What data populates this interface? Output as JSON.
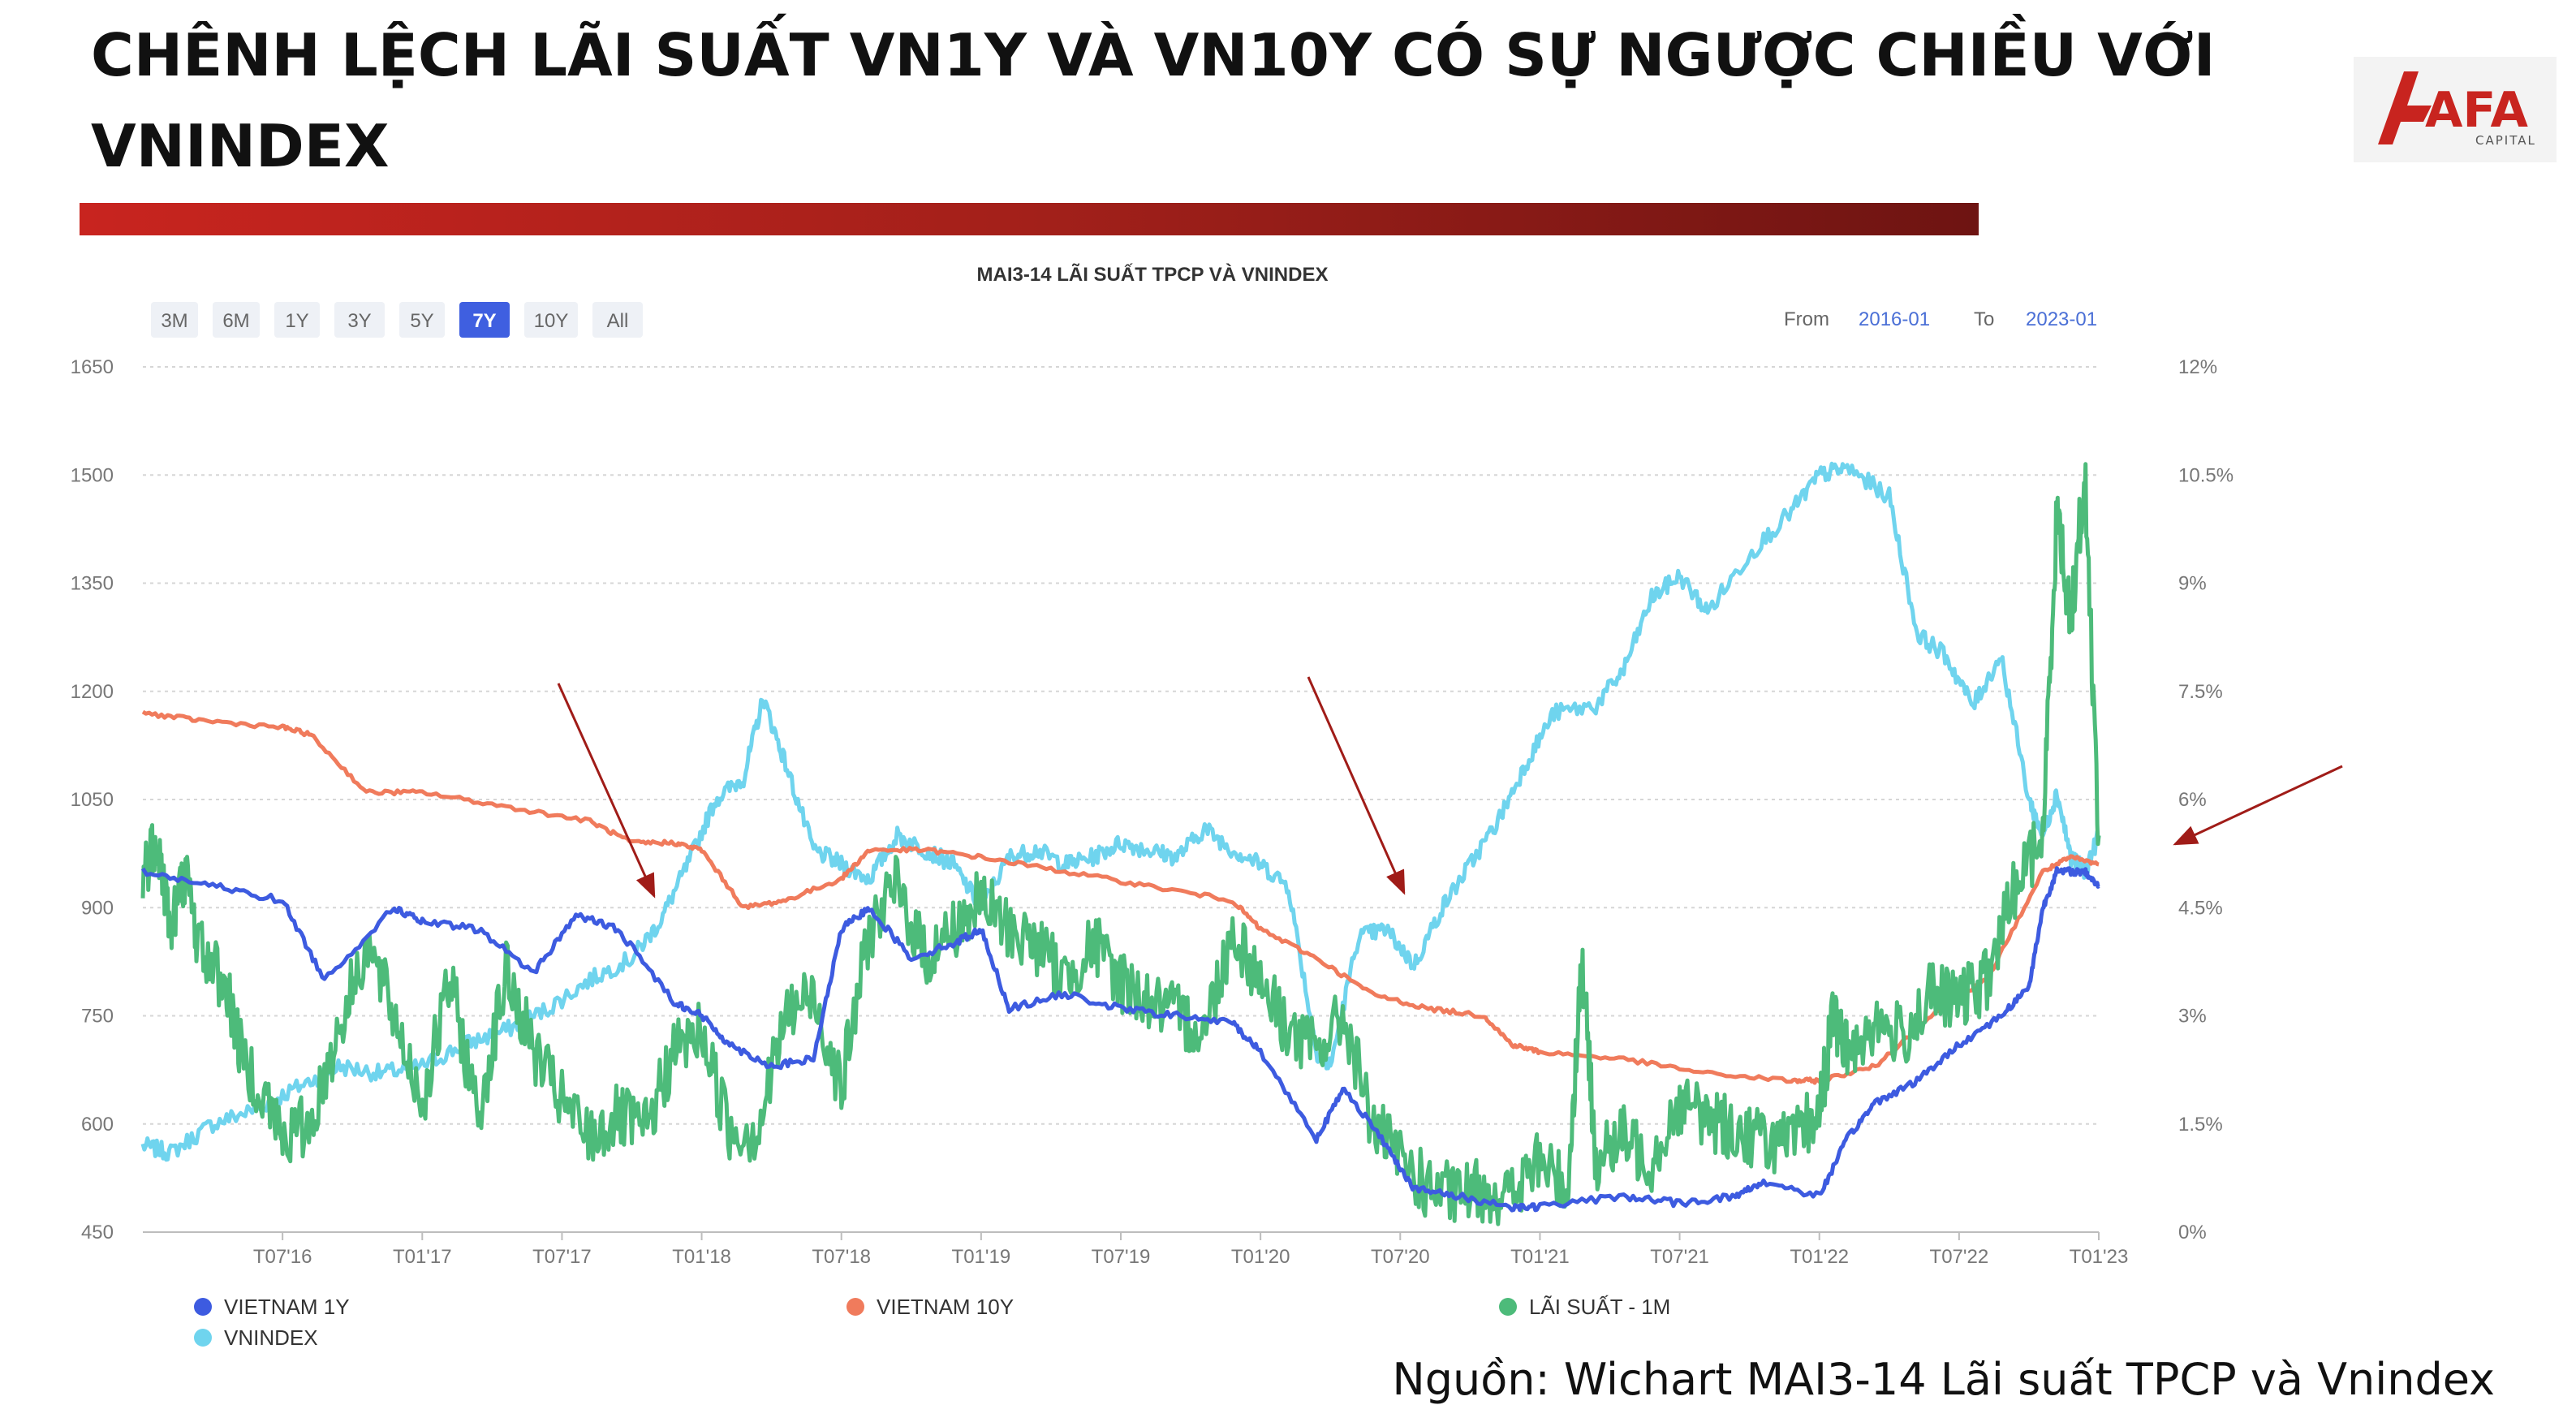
{
  "slide": {
    "title": "CHÊNH LỆCH LÃI SUẤT VN1Y VÀ VN10Y CÓ SỰ NGƯỢC CHIỀU VỚI VNINDEX",
    "source": "Nguồn: Wichart MAI3-14 Lãi suất TPCP và Vnindex",
    "logo_text": "AFA",
    "logo_subtext": "CAPITAL",
    "accent_color": "#c8241f"
  },
  "range_selector": {
    "buttons": [
      "3M",
      "6M",
      "1Y",
      "3Y",
      "5Y",
      "7Y",
      "10Y",
      "All"
    ],
    "active": "7Y",
    "from_label": "From",
    "from_value": "2016-01",
    "to_label": "To",
    "to_value": "2023-01"
  },
  "chart_data": {
    "type": "line",
    "title": "MAI3-14 LÃI SUẤT TPCP VÀ VNINDEX",
    "x_ticks": [
      "T07'16",
      "T01'17",
      "T07'17",
      "T01'18",
      "T07'18",
      "T01'19",
      "T07'19",
      "T01'20",
      "T07'20",
      "T01'21",
      "T07'21",
      "T01'22",
      "T07'22",
      "T01'23"
    ],
    "left_axis": {
      "range": [
        450,
        1650
      ],
      "ticks": [
        450,
        600,
        750,
        900,
        1050,
        1200,
        1350,
        1500,
        1650
      ]
    },
    "right_axis": {
      "range": [
        0,
        12
      ],
      "unit": "%",
      "ticks": [
        "0%",
        "1.5%",
        "3%",
        "4.5%",
        "6%",
        "7.5%",
        "9%",
        "10.5%",
        "12%"
      ]
    },
    "grid": true,
    "legend_position": "bottom",
    "series": [
      {
        "name": "VIETNAM 1Y",
        "axis": "right",
        "color": "#3d5be0",
        "x": [
          2016.0,
          2016.25,
          2016.5,
          2016.65,
          2016.9,
          2017.0,
          2017.2,
          2017.4,
          2017.55,
          2017.7,
          2017.9,
          2018.0,
          2018.1,
          2018.25,
          2018.4,
          2018.5,
          2018.6,
          2018.75,
          2018.9,
          2019.0,
          2019.1,
          2019.3,
          2019.5,
          2019.7,
          2019.9,
          2020.0,
          2020.2,
          2020.3,
          2020.45,
          2020.55,
          2020.7,
          2020.9,
          2021.0,
          2021.3,
          2021.5,
          2021.7,
          2021.8,
          2022.0,
          2022.1,
          2022.2,
          2022.35,
          2022.5,
          2022.65,
          2022.75,
          2022.8,
          2022.85,
          2022.95,
          2023.0
        ],
        "values": [
          5.0,
          4.8,
          4.6,
          3.5,
          4.5,
          4.3,
          4.2,
          3.6,
          4.4,
          4.2,
          3.2,
          3.0,
          2.6,
          2.3,
          2.4,
          4.2,
          4.5,
          3.8,
          4.0,
          4.2,
          3.1,
          3.3,
          3.1,
          3.0,
          2.9,
          2.5,
          1.3,
          2.0,
          1.2,
          0.6,
          0.5,
          0.35,
          0.35,
          0.5,
          0.4,
          0.5,
          0.7,
          0.5,
          1.3,
          1.8,
          2.1,
          2.6,
          3.0,
          3.4,
          4.5,
          5.0,
          5.0,
          4.8
        ]
      },
      {
        "name": "VIETNAM 10Y",
        "axis": "right",
        "color": "#f07b5c",
        "x": [
          2016.0,
          2016.2,
          2016.5,
          2016.6,
          2016.8,
          2017.0,
          2017.3,
          2017.6,
          2017.75,
          2017.9,
          2018.0,
          2018.15,
          2018.3,
          2018.5,
          2018.6,
          2018.8,
          2019.0,
          2019.3,
          2019.6,
          2019.9,
          2020.0,
          2020.2,
          2020.4,
          2020.6,
          2020.8,
          2020.9,
          2021.0,
          2021.3,
          2021.6,
          2021.9,
          2022.0,
          2022.2,
          2022.4,
          2022.6,
          2022.8,
          2022.9,
          2023.0
        ],
        "values": [
          7.2,
          7.1,
          7.0,
          6.9,
          6.1,
          6.1,
          5.9,
          5.7,
          5.4,
          5.4,
          5.3,
          4.5,
          4.6,
          4.9,
          5.3,
          5.3,
          5.2,
          5.0,
          4.8,
          4.6,
          4.2,
          3.8,
          3.3,
          3.1,
          3.0,
          2.6,
          2.5,
          2.4,
          2.2,
          2.1,
          2.1,
          2.3,
          3.0,
          3.5,
          5.0,
          5.2,
          5.1
        ]
      },
      {
        "name": "LÃI SUẤT - 1M",
        "axis": "right",
        "color": "#4dbb7a",
        "x": [
          2016.0,
          2016.05,
          2016.1,
          2016.15,
          2016.2,
          2016.3,
          2016.35,
          2016.45,
          2016.5,
          2016.6,
          2016.7,
          2016.8,
          2016.9,
          2017.0,
          2017.1,
          2017.2,
          2017.3,
          2017.4,
          2017.5,
          2017.6,
          2017.7,
          2017.8,
          2017.9,
          2018.0,
          2018.1,
          2018.2,
          2018.3,
          2018.4,
          2018.5,
          2018.6,
          2018.7,
          2018.8,
          2018.9,
          2019.0,
          2019.1,
          2019.2,
          2019.3,
          2019.4,
          2019.5,
          2019.6,
          2019.7,
          2019.8,
          2019.9,
          2020.0,
          2020.1,
          2020.2,
          2020.3,
          2020.4,
          2020.5,
          2020.6,
          2020.7,
          2020.8,
          2020.9,
          2021.0,
          2021.1,
          2021.15,
          2021.2,
          2021.3,
          2021.4,
          2021.5,
          2021.6,
          2021.7,
          2021.8,
          2021.9,
          2022.0,
          2022.05,
          2022.1,
          2022.2,
          2022.3,
          2022.4,
          2022.5,
          2022.6,
          2022.7,
          2022.8,
          2022.85,
          2022.9,
          2022.95,
          2023.0
        ],
        "values": [
          5.0,
          5.5,
          4.2,
          5.0,
          4.0,
          3.4,
          2.5,
          1.8,
          1.3,
          1.5,
          2.8,
          4.0,
          3.0,
          1.8,
          3.5,
          1.6,
          3.6,
          2.5,
          1.8,
          1.3,
          1.6,
          1.4,
          2.5,
          2.8,
          1.4,
          1.4,
          3.0,
          3.3,
          2.0,
          4.2,
          4.8,
          3.8,
          4.2,
          4.6,
          4.2,
          4.0,
          3.5,
          4.0,
          3.5,
          3.2,
          3.0,
          2.8,
          4.2,
          3.5,
          2.8,
          2.5,
          3.0,
          1.5,
          1.0,
          0.6,
          0.5,
          0.6,
          0.5,
          1.0,
          0.6,
          3.8,
          1.0,
          1.3,
          1.0,
          1.8,
          1.6,
          1.4,
          1.3,
          1.2,
          1.7,
          3.0,
          2.5,
          2.9,
          2.7,
          3.3,
          3.2,
          3.5,
          4.8,
          5.5,
          10.0,
          8.5,
          10.5,
          5.5
        ]
      },
      {
        "name": "VNINDEX",
        "axis": "left",
        "color": "#6fd4ee",
        "x": [
          2016.0,
          2016.1,
          2016.25,
          2016.4,
          2016.55,
          2016.7,
          2016.85,
          2017.0,
          2017.15,
          2017.3,
          2017.45,
          2017.6,
          2017.75,
          2017.85,
          2017.95,
          2018.05,
          2018.15,
          2018.22,
          2018.3,
          2018.4,
          2018.5,
          2018.6,
          2018.7,
          2018.8,
          2018.9,
          2019.0,
          2019.1,
          2019.2,
          2019.3,
          2019.4,
          2019.5,
          2019.6,
          2019.7,
          2019.8,
          2019.9,
          2020.0,
          2020.1,
          2020.2,
          2020.25,
          2020.35,
          2020.45,
          2020.55,
          2020.65,
          2020.75,
          2020.85,
          2020.95,
          2021.05,
          2021.2,
          2021.3,
          2021.4,
          2021.5,
          2021.6,
          2021.75,
          2021.9,
          2022.0,
          2022.1,
          2022.25,
          2022.35,
          2022.45,
          2022.55,
          2022.65,
          2022.75,
          2022.8,
          2022.85,
          2022.9,
          2022.95,
          2023.0
        ],
        "values": [
          570,
          560,
          600,
          620,
          650,
          680,
          670,
          680,
          710,
          730,
          760,
          800,
          830,
          880,
          960,
          1050,
          1080,
          1190,
          1100,
          980,
          960,
          940,
          1000,
          980,
          960,
          900,
          970,
          980,
          960,
          970,
          990,
          980,
          970,
          1010,
          980,
          960,
          930,
          700,
          680,
          860,
          870,
          820,
          900,
          960,
          1020,
          1100,
          1170,
          1180,
          1230,
          1330,
          1360,
          1310,
          1390,
          1450,
          1500,
          1510,
          1470,
          1280,
          1250,
          1180,
          1250,
          1050,
          1000,
          1060,
          970,
          950,
          1000
        ]
      }
    ],
    "annotations": [
      {
        "type": "arrow",
        "color": "#a01c18",
        "points_to": "VNINDEX T01'18"
      },
      {
        "type": "arrow",
        "color": "#a01c18",
        "points_to": "VNINDEX T03'20"
      },
      {
        "type": "arrow",
        "color": "#a01c18",
        "points_to": "VNINDEX T01'23"
      }
    ]
  }
}
